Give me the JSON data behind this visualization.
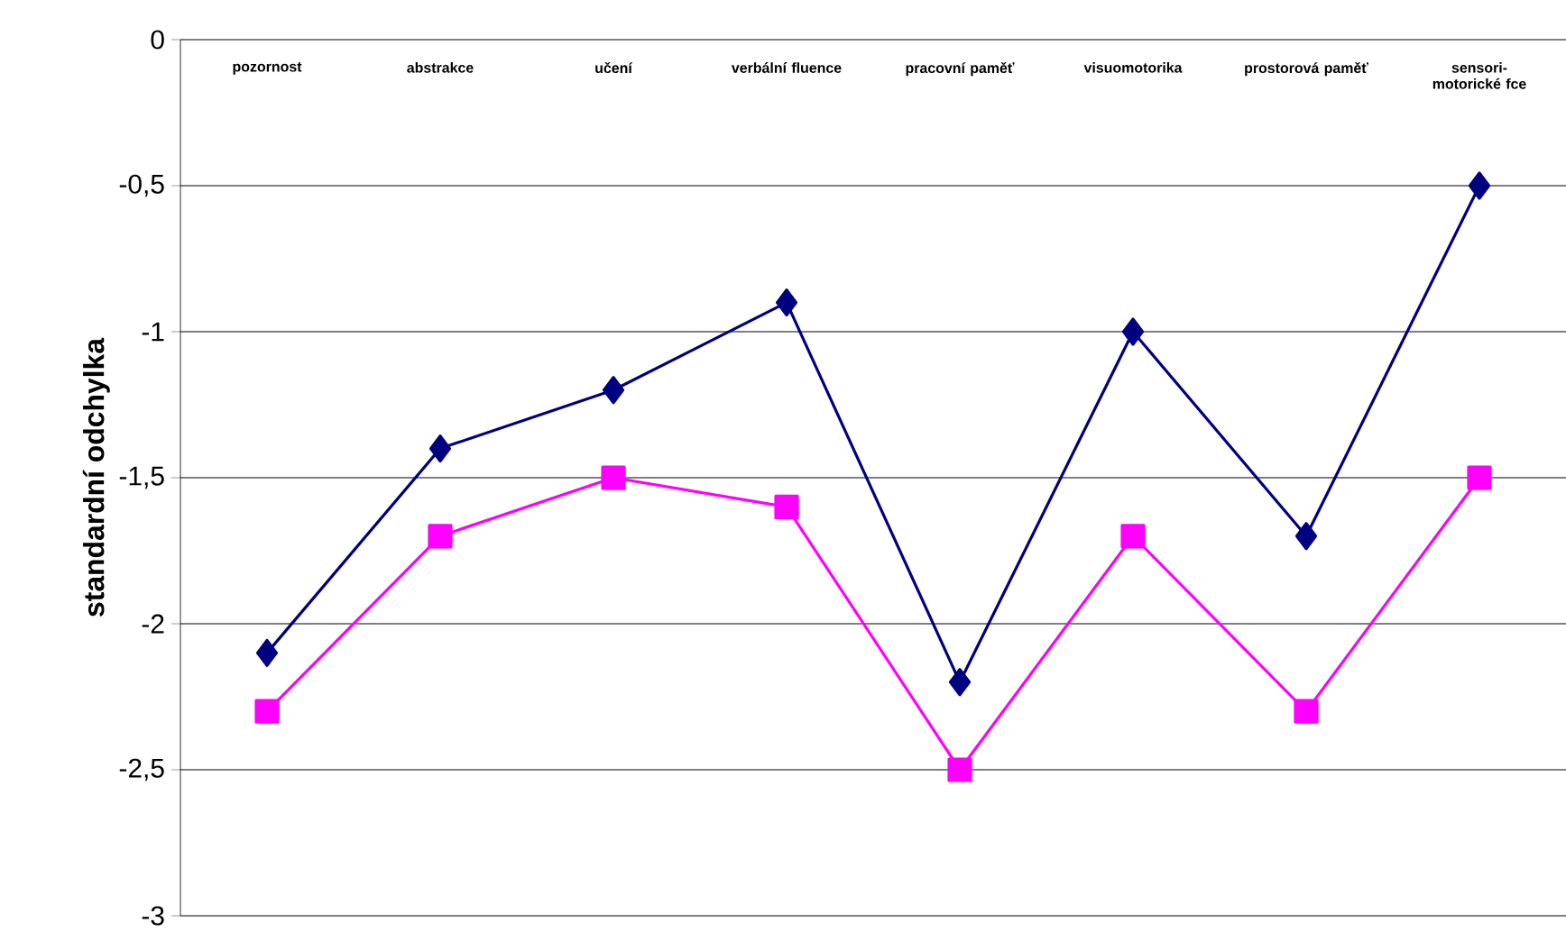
{
  "chart_data": {
    "type": "line",
    "ylabel": "standardní odchylka",
    "categories": [
      "pozornost",
      "abstrakce",
      "učení",
      "verbální fluence",
      "pracovní paměť",
      "visuomotorika",
      "prostorová paměť",
      "sensori-motorické fce"
    ],
    "series": [
      {
        "color": "#000080",
        "marker": "diamond",
        "values": [
          -2.1,
          -1.4,
          -1.2,
          -0.9,
          -2.2,
          -1.0,
          -1.7,
          -0.5
        ]
      },
      {
        "color": "#ff00ff",
        "marker": "square",
        "values": [
          -2.3,
          -1.7,
          -1.5,
          -1.6,
          -2.5,
          -1.7,
          -2.3,
          -1.5
        ]
      }
    ],
    "ylim": [
      -3,
      0
    ],
    "yticks": [
      {
        "value": -3,
        "label": "-3"
      },
      {
        "value": -2.5,
        "label": "-2,5"
      },
      {
        "value": -2,
        "label": "-2"
      },
      {
        "value": -1.5,
        "label": "-1,5"
      },
      {
        "value": -1,
        "label": "-1"
      },
      {
        "value": -0.5,
        "label": "-0,5"
      },
      {
        "value": 0,
        "label": "0"
      }
    ],
    "grid": "y",
    "line_style": "solid"
  }
}
